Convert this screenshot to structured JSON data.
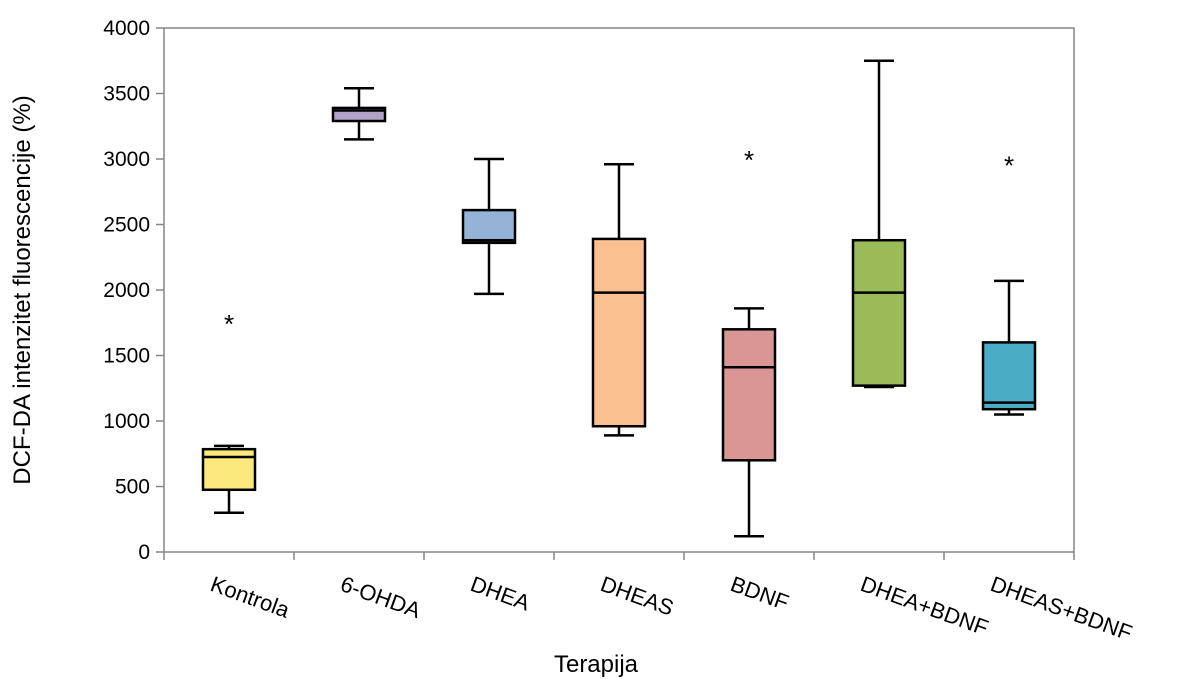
{
  "chart_data": {
    "type": "boxplot",
    "xlabel": "Terapija",
    "ylabel": "DCF-DA intenzitet fluorescencije (%)",
    "ylim": [
      0,
      4000
    ],
    "yticks": [
      0,
      500,
      1000,
      1500,
      2000,
      2500,
      3000,
      3500,
      4000
    ],
    "grid": false,
    "legend": "none",
    "categories": [
      "Kontrola",
      "6-OHDA",
      "DHEA",
      "DHEAS",
      "BDNF",
      "DHEA+BDNF",
      "DHEAS+BDNF"
    ],
    "boxes": [
      {
        "category": "Kontrola",
        "min": 300,
        "q1": 475,
        "median": 725,
        "q3": 785,
        "max": 810,
        "color": "#FCE97E",
        "annotation": "*",
        "annotation_y": 1780
      },
      {
        "category": "6-OHDA",
        "min": 3150,
        "q1": 3290,
        "median": 3370,
        "q3": 3390,
        "max": 3540,
        "color": "#B3A2C7",
        "annotation": "",
        "annotation_y": null
      },
      {
        "category": "DHEA",
        "min": 1970,
        "q1": 2360,
        "median": 2380,
        "q3": 2610,
        "max": 3000,
        "color": "#95B3D7",
        "annotation": "",
        "annotation_y": null
      },
      {
        "category": "DHEAS",
        "min": 890,
        "q1": 960,
        "median": 1980,
        "q3": 2390,
        "max": 2960,
        "color": "#FAC090",
        "annotation": "",
        "annotation_y": null
      },
      {
        "category": "BDNF",
        "min": 120,
        "q1": 700,
        "median": 1410,
        "q3": 1700,
        "max": 1860,
        "color": "#D99694",
        "annotation": "*",
        "annotation_y": 3030
      },
      {
        "category": "DHEA+BDNF",
        "min": 1260,
        "q1": 1270,
        "median": 1980,
        "q3": 2380,
        "max": 3750,
        "color": "#9BBB59",
        "annotation": "",
        "annotation_y": null
      },
      {
        "category": "DHEAS+BDNF",
        "min": 1050,
        "q1": 1090,
        "median": 1140,
        "q3": 1600,
        "max": 2070,
        "color": "#4BACC6",
        "annotation": "*",
        "annotation_y": 2990
      }
    ]
  }
}
